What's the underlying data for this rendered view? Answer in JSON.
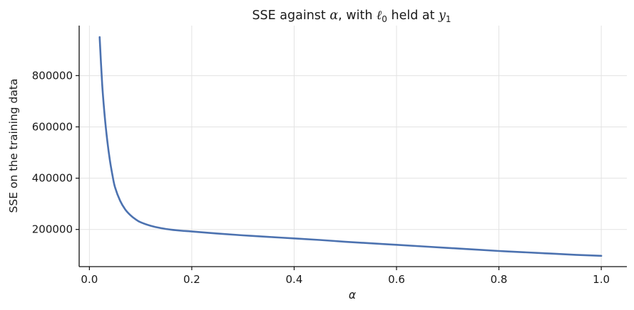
{
  "chart_data": {
    "type": "line",
    "title": "SSE against α, with ℓ₀ held at y₁",
    "title_parts": {
      "prefix": "SSE against ",
      "alpha": "α",
      "middle": ", with ",
      "ell": "ℓ",
      "ell_sub": "0",
      "middle2": " held at ",
      "y": "y",
      "y_sub": "1"
    },
    "xlabel": "α",
    "ylabel": "SSE on the training data",
    "xlim": [
      -0.02,
      1.05
    ],
    "ylim": [
      55000,
      995000
    ],
    "xticks": [
      0.0,
      0.2,
      0.4,
      0.6,
      0.8,
      1.0
    ],
    "xtick_labels": [
      "0.0",
      "0.2",
      "0.4",
      "0.6",
      "0.8",
      "1.0"
    ],
    "yticks": [
      200000,
      400000,
      600000,
      800000
    ],
    "ytick_labels": [
      "200000",
      "400000",
      "600000",
      "800000"
    ],
    "grid": true,
    "line_color": "#4c72b0",
    "series": [
      {
        "x": [
          0.02,
          0.025,
          0.03,
          0.035,
          0.04,
          0.045,
          0.05,
          0.06,
          0.07,
          0.08,
          0.09,
          0.1,
          0.12,
          0.14,
          0.16,
          0.18,
          0.2,
          0.25,
          0.3,
          0.35,
          0.4,
          0.45,
          0.5,
          0.55,
          0.6,
          0.65,
          0.7,
          0.75,
          0.8,
          0.85,
          0.9,
          0.95,
          1.0
        ],
        "values": [
          950000,
          765000,
          640000,
          545000,
          470000,
          412000,
          365000,
          312000,
          278000,
          256000,
          240000,
          228000,
          214000,
          205000,
          199000,
          195000,
          192000,
          184000,
          177000,
          171000,
          165000,
          159000,
          152000,
          146000,
          140000,
          134000,
          128000,
          122000,
          116000,
          111000,
          106000,
          101000,
          97000
        ]
      }
    ]
  }
}
